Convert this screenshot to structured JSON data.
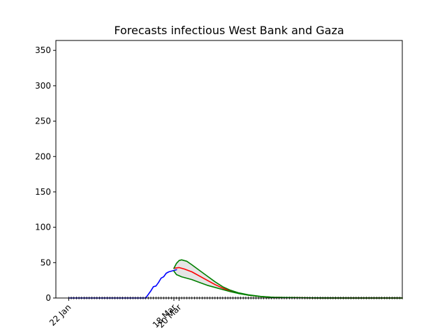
{
  "chart_data": {
    "type": "line",
    "title": "Forecasts infectious West Bank and Gaza",
    "xlabel": "",
    "ylabel": "",
    "x_range_days": [
      -5,
      130
    ],
    "ylim": [
      0,
      364
    ],
    "y_ticks": [
      0,
      50,
      100,
      150,
      200,
      250,
      300,
      350
    ],
    "x_tick_labels": [
      {
        "day": 0,
        "label": "22 Jan"
      },
      {
        "day": 41,
        "label": "18 Mar"
      },
      {
        "day": 43,
        "label": "20 Mar"
      }
    ],
    "minor_tick_count": 131,
    "grid": false,
    "legend": "none",
    "series": [
      {
        "color": "#0000ff",
        "style": "observed",
        "points": [
          [
            0,
            0
          ],
          [
            5,
            0
          ],
          [
            10,
            0
          ],
          [
            15,
            0
          ],
          [
            20,
            0
          ],
          [
            25,
            0
          ],
          [
            30,
            0
          ],
          [
            31,
            5
          ],
          [
            32,
            10
          ],
          [
            33,
            16
          ],
          [
            34,
            17
          ],
          [
            35,
            22
          ],
          [
            36,
            28
          ],
          [
            37,
            30
          ],
          [
            38,
            35
          ],
          [
            39,
            37
          ],
          [
            40,
            38
          ],
          [
            41,
            39
          ],
          [
            42,
            40
          ]
        ]
      },
      {
        "color": "#ff0000",
        "style": "forecast-median",
        "points": [
          [
            41,
            42
          ],
          [
            43,
            43
          ],
          [
            45,
            41
          ],
          [
            48,
            37
          ],
          [
            51,
            31
          ],
          [
            54,
            25
          ],
          [
            57,
            19
          ],
          [
            60,
            14
          ],
          [
            63,
            10
          ],
          [
            66,
            7
          ],
          [
            70,
            4
          ],
          [
            75,
            2
          ],
          [
            80,
            1
          ],
          [
            90,
            0.3
          ],
          [
            100,
            0.1
          ],
          [
            110,
            0
          ],
          [
            130,
            0
          ]
        ]
      },
      {
        "color": "#008000",
        "style": "forecast-upper",
        "points": [
          [
            41,
            42
          ],
          [
            42,
            49
          ],
          [
            43,
            53
          ],
          [
            44,
            54
          ],
          [
            46,
            52
          ],
          [
            48,
            47
          ],
          [
            51,
            39
          ],
          [
            54,
            31
          ],
          [
            57,
            23
          ],
          [
            60,
            16
          ],
          [
            63,
            11
          ],
          [
            66,
            7.5
          ],
          [
            70,
            4.5
          ],
          [
            75,
            2.2
          ],
          [
            80,
            1
          ],
          [
            90,
            0.3
          ],
          [
            100,
            0.1
          ],
          [
            110,
            0
          ],
          [
            130,
            0
          ]
        ]
      },
      {
        "color": "#008000",
        "style": "forecast-lower",
        "points": [
          [
            41,
            38
          ],
          [
            42,
            33
          ],
          [
            44,
            30
          ],
          [
            46,
            28
          ],
          [
            48,
            26
          ],
          [
            51,
            22
          ],
          [
            54,
            18
          ],
          [
            57,
            15
          ],
          [
            60,
            12
          ],
          [
            63,
            9
          ],
          [
            66,
            6.5
          ],
          [
            70,
            4
          ],
          [
            75,
            2
          ],
          [
            80,
            1
          ],
          [
            90,
            0.3
          ],
          [
            100,
            0.1
          ],
          [
            110,
            0
          ],
          [
            130,
            0
          ]
        ]
      }
    ]
  }
}
